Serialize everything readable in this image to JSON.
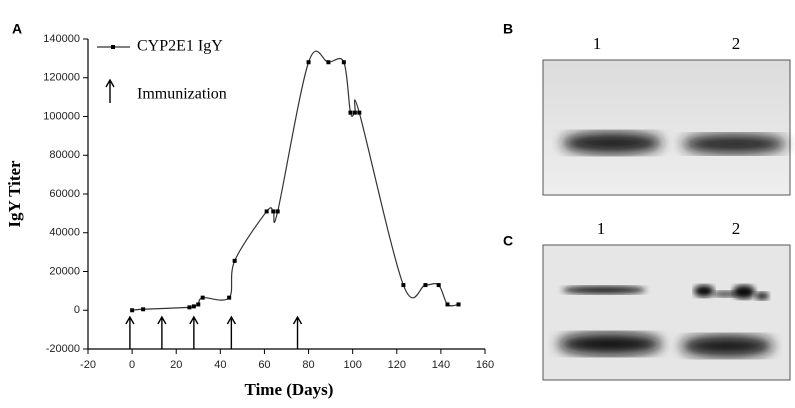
{
  "panel_label": "A",
  "chart_data": {
    "type": "scatter",
    "xlabel": "Time (Days)",
    "ylabel": "IgY Titer",
    "series": [
      {
        "name": "CYP2E1 IgY",
        "color": "#000000",
        "x": [
          0,
          5,
          26,
          28,
          30,
          32,
          44,
          46.5,
          61,
          64,
          66,
          80,
          89,
          96,
          99,
          101,
          103,
          123,
          133,
          139,
          143,
          148
        ],
        "values": [
          0,
          500,
          1500,
          2000,
          3000,
          6500,
          6500,
          25500,
          51000,
          51000,
          51000,
          128000,
          128000,
          128000,
          102000,
          102000,
          102000,
          13000,
          13000,
          13000,
          3000,
          3000
        ]
      }
    ],
    "immunization_label": "Immunization",
    "immunization_days": [
      -1,
      13.5,
      28,
      45,
      75
    ],
    "xlim": [
      -20,
      160
    ],
    "xticks": [
      -20,
      0,
      20,
      40,
      60,
      80,
      100,
      120,
      140,
      160
    ],
    "ylim": [
      -20000,
      140000
    ],
    "yticks": [
      -20000,
      0,
      20000,
      40000,
      60000,
      80000,
      100000,
      120000,
      140000
    ]
  },
  "blots": [
    {
      "label": "B",
      "lanes": [
        "1",
        "2"
      ]
    },
    {
      "label": "C",
      "lanes": [
        "1",
        "2"
      ]
    }
  ]
}
